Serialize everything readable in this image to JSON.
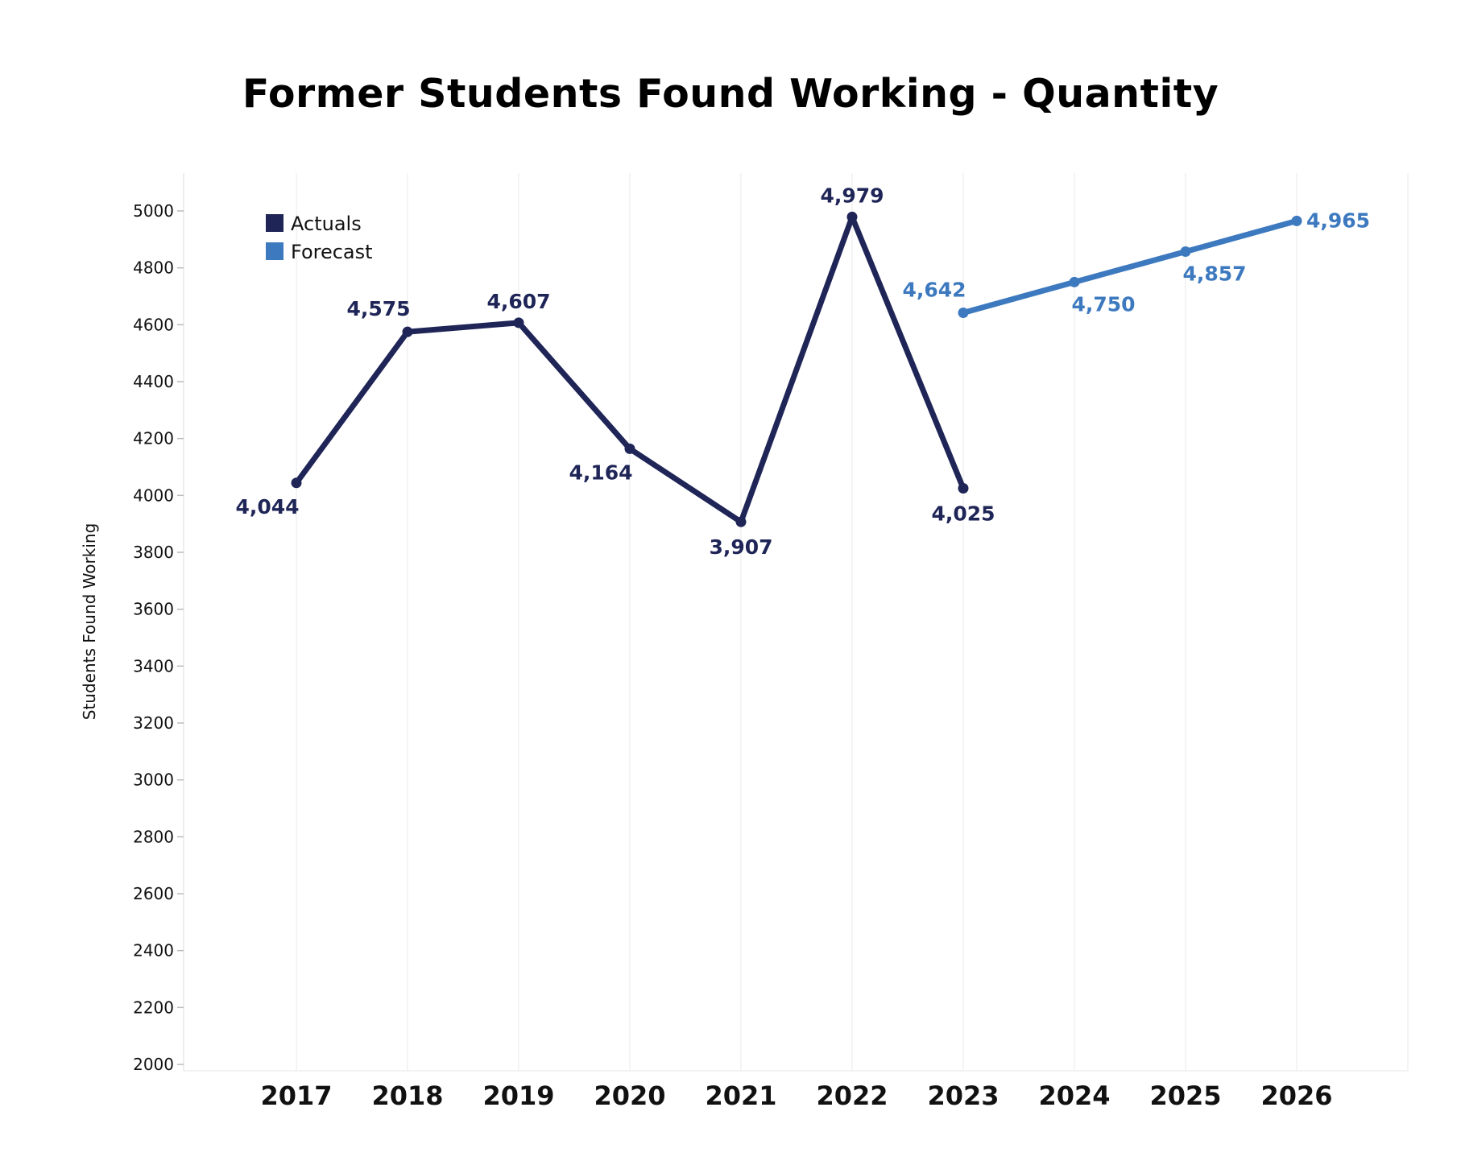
{
  "chart_data": {
    "type": "line",
    "title": "Former Students Found Working - Quantity",
    "xlabel": "",
    "ylabel": "Students Found Working",
    "ylim": [
      2000,
      5000
    ],
    "y_ticks": [
      2000,
      2200,
      2400,
      2600,
      2800,
      3000,
      3200,
      3400,
      3600,
      3800,
      4000,
      4200,
      4400,
      4600,
      4800,
      5000
    ],
    "categories": [
      "2017",
      "2018",
      "2019",
      "2020",
      "2021",
      "2022",
      "2023",
      "2024",
      "2025",
      "2026"
    ],
    "grid": {
      "vertical": true,
      "horizontal": false
    },
    "legend_position": "top-left",
    "series": [
      {
        "name": "Actuals",
        "color": "#1f2557",
        "x": [
          "2017",
          "2018",
          "2019",
          "2020",
          "2021",
          "2022",
          "2023"
        ],
        "values": [
          4044,
          4575,
          4607,
          4164,
          3907,
          4979,
          4025
        ],
        "labels": [
          "4,044",
          "4,575",
          "4,607",
          "4,164",
          "3,907",
          "4,979",
          "4,025"
        ],
        "label_positions": [
          "below-left",
          "above-left",
          "above",
          "below-left",
          "below",
          "above",
          "below"
        ]
      },
      {
        "name": "Forecast",
        "color": "#3d79bf",
        "x": [
          "2023",
          "2024",
          "2025",
          "2026"
        ],
        "values": [
          4642,
          4750,
          4857,
          4965
        ],
        "labels": [
          "4,642",
          "4,750",
          "4,857",
          "4,965"
        ],
        "label_positions": [
          "above-left",
          "below-right",
          "below-right",
          "right"
        ]
      }
    ]
  }
}
